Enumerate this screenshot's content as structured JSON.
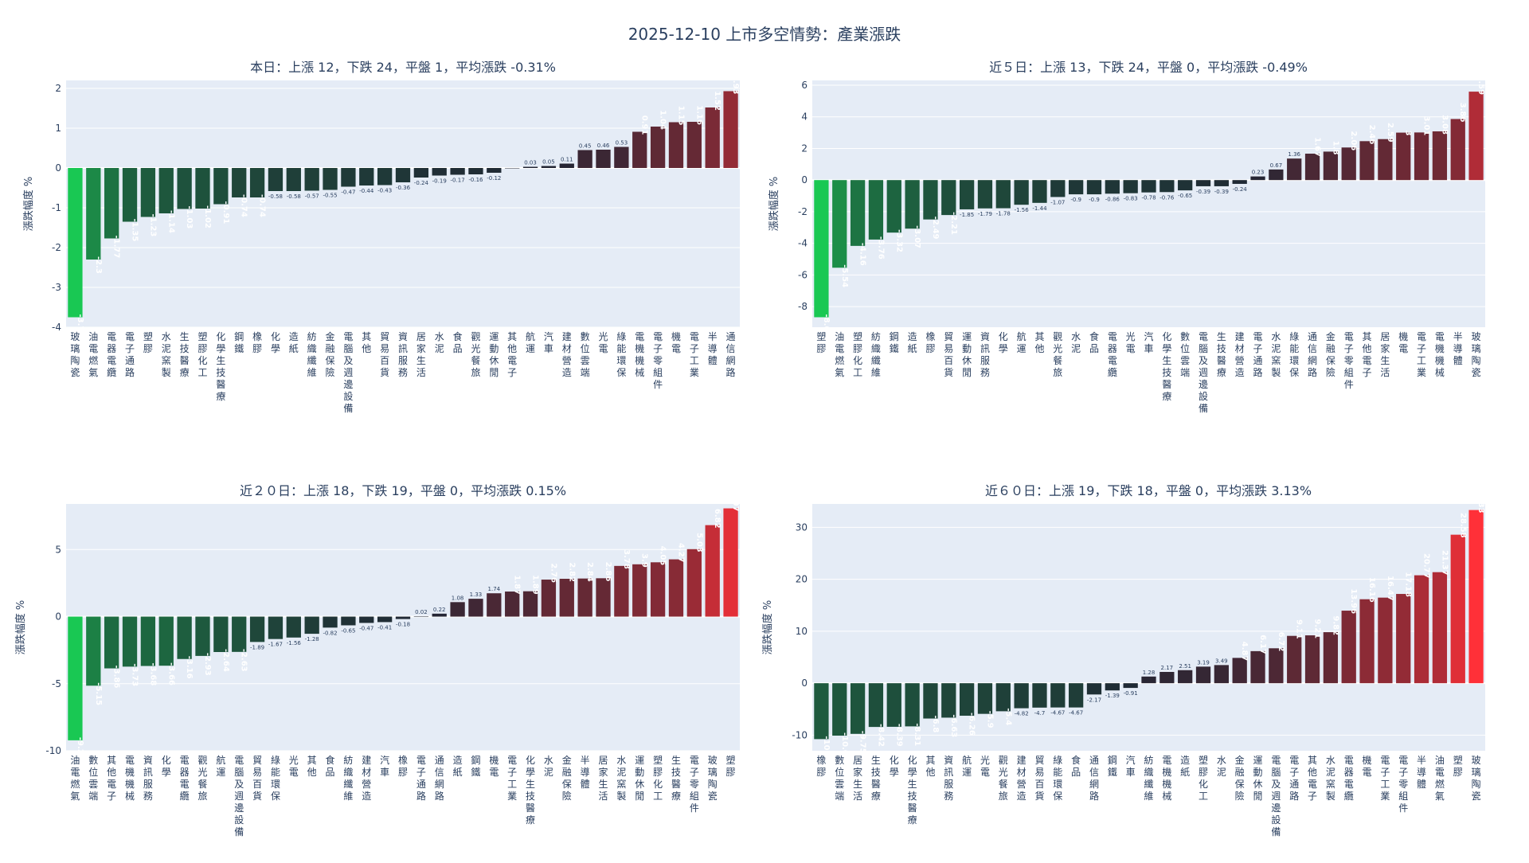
{
  "chart_data": {
    "title": "2025-12-10 上市多空情勢：產業漲跌",
    "type": "bar",
    "panels": [
      {
        "title": "本日：上漲 12，下跌 24，平盤 1，平均漲跌 -0.31%",
        "ylabel": "漲跌幅度 %",
        "ylim": [
          -4,
          2.2
        ],
        "yticks": [
          -4,
          -3,
          -2,
          -1,
          0,
          1,
          2
        ],
        "categories": [
          "玻璃陶瓷",
          "油電燃氣",
          "電器電纜",
          "電子通路",
          "塑膠",
          "水泥窯製",
          "生技醫療",
          "塑膠化工",
          "化學生技醫療",
          "鋼鐵",
          "橡膠",
          "化學",
          "造紙",
          "紡織纖維",
          "金融保險",
          "電腦及週邊設備",
          "其他",
          "貿易百貨",
          "資訊服務",
          "居家生活",
          "水泥",
          "食品",
          "觀光餐旅",
          "運動休閒",
          "其他電子",
          "航運",
          "汽車",
          "建材營造",
          "數位雲端",
          "光電",
          "綠能環保",
          "電機機械",
          "電子零組件",
          "機電",
          "電子工業",
          "半導體",
          "通信網路"
        ],
        "values": [
          -3.75,
          -2.3,
          -1.77,
          -1.35,
          -1.23,
          -1.14,
          -1.03,
          -1.02,
          -0.91,
          -0.74,
          -0.74,
          -0.58,
          -0.58,
          -0.57,
          -0.55,
          -0.47,
          -0.44,
          -0.43,
          -0.36,
          -0.24,
          -0.19,
          -0.17,
          -0.16,
          -0.12,
          0,
          0.03,
          0.05,
          0.11,
          0.45,
          0.46,
          0.53,
          0.91,
          1.04,
          1.15,
          1.16,
          1.52,
          1.93
        ],
        "labels": [
          "-3.75",
          "-2.3",
          "-1.77",
          "-1.35",
          "-1.23",
          "-1.14",
          "-1.03",
          "-1.02",
          "-0.91",
          "-0.74",
          "-0.74",
          "-0.58",
          "-0.58",
          "-0.57",
          "-0.55",
          "-0.47",
          "-0.44",
          "-0.43",
          "-0.36",
          "-0.24",
          "-0.19",
          "-0.17",
          "-0.16",
          "-0.12",
          "",
          "0.03",
          "0.05",
          "0.11",
          "0.45",
          "0.46",
          "0.53",
          "0.91",
          "1.04",
          "1.15",
          "1.16",
          "1.52",
          "1.93"
        ]
      },
      {
        "title": "近５日：上漲 13，下跌 24，平盤 0，平均漲跌 -0.49%",
        "ylabel": "漲跌幅度 %",
        "ylim": [
          -9.3,
          6.3
        ],
        "yticks": [
          -8,
          -6,
          -4,
          -2,
          0,
          2,
          4,
          6
        ],
        "categories": [
          "塑膠",
          "油電燃氣",
          "塑膠化工",
          "紡織纖維",
          "鋼鐵",
          "造紙",
          "橡膠",
          "貿易百貨",
          "運動休閒",
          "資訊服務",
          "化學",
          "航運",
          "其他",
          "觀光餐旅",
          "水泥",
          "食品",
          "電器電纜",
          "光電",
          "汽車",
          "化學生技醫療",
          "數位雲端",
          "電腦及週邊設備",
          "生技醫療",
          "建材營造",
          "電子通路",
          "水泥窯製",
          "綠能環保",
          "通信網路",
          "金融保險",
          "電子零組件",
          "其他電子",
          "居家生活",
          "機電",
          "電子工業",
          "電機機械",
          "半導體",
          "玻璃陶瓷"
        ],
        "values": [
          -8.67,
          -5.54,
          -4.16,
          -3.76,
          -3.32,
          -3.07,
          -2.49,
          -2.21,
          -1.85,
          -1.79,
          -1.78,
          -1.56,
          -1.44,
          -1.07,
          -0.9,
          -0.9,
          -0.86,
          -0.83,
          -0.78,
          -0.76,
          -0.65,
          -0.39,
          -0.39,
          -0.24,
          0.23,
          0.67,
          1.36,
          1.67,
          1.8,
          2.06,
          2.46,
          2.59,
          3,
          3.01,
          3.08,
          3.86,
          5.59
        ],
        "labels": [
          "-8.67",
          "-5.54",
          "-4.16",
          "-3.76",
          "-3.32",
          "-3.07",
          "-2.49",
          "-2.21",
          "-1.85",
          "-1.79",
          "-1.78",
          "-1.56",
          "-1.44",
          "-1.07",
          "-0.9",
          "-0.9",
          "-0.86",
          "-0.83",
          "-0.78",
          "-0.76",
          "-0.65",
          "-0.39",
          "-0.39",
          "-0.24",
          "0.23",
          "0.67",
          "1.36",
          "1.67",
          "1.8",
          "2.06",
          "2.46",
          "2.59",
          "3",
          "3.01",
          "3.08",
          "3.86",
          "5.59"
        ]
      },
      {
        "title": "近２０日：上漲 18，下跌 19，平盤 0，平均漲跌 0.15%",
        "ylabel": "漲跌幅度 %",
        "ylim": [
          -10,
          8.4
        ],
        "yticks": [
          -10,
          -5,
          0,
          5
        ],
        "categories": [
          "油電燃氣",
          "數位雲端",
          "其他電子",
          "電機機械",
          "資訊服務",
          "化學",
          "電器電纜",
          "觀光餐旅",
          "航運",
          "電腦及週邊設備",
          "貿易百貨",
          "綠能環保",
          "光電",
          "其他",
          "食品",
          "紡織纖維",
          "建材營造",
          "汽車",
          "橡膠",
          "電子通路",
          "通信網路",
          "造紙",
          "鋼鐵",
          "機電",
          "電子工業",
          "化學生技醫療",
          "水泥",
          "金融保險",
          "半導體",
          "居家生活",
          "水泥窯製",
          "運動休閒",
          "塑膠化工",
          "生技醫療",
          "電子零組件",
          "玻璃陶瓷",
          "塑膠"
        ],
        "values": [
          -9.22,
          -5.15,
          -3.86,
          -3.73,
          -3.68,
          -3.66,
          -3.16,
          -2.93,
          -2.64,
          -2.63,
          -1.89,
          -1.67,
          -1.56,
          -1.28,
          -0.82,
          -0.65,
          -0.47,
          -0.41,
          -0.18,
          0.02,
          0.22,
          1.08,
          1.33,
          1.74,
          1.87,
          1.89,
          2.76,
          2.82,
          2.84,
          2.86,
          3.78,
          3.9,
          4.05,
          4.27,
          5.03,
          6.82,
          8.07
        ],
        "labels": [
          "-9.22",
          "-5.15",
          "-3.86",
          "-3.73",
          "-3.68",
          "-3.66",
          "-3.16",
          "-2.93",
          "-2.64",
          "-2.63",
          "-1.89",
          "-1.67",
          "-1.56",
          "-1.28",
          "-0.82",
          "-0.65",
          "-0.47",
          "-0.41",
          "-0.18",
          "0.02",
          "0.22",
          "1.08",
          "1.33",
          "1.74",
          "1.87",
          "1.89",
          "2.76",
          "2.82",
          "2.84",
          "2.86",
          "3.78",
          "3.9",
          "4.05",
          "4.27",
          "5.03",
          "6.82",
          "8.07"
        ]
      },
      {
        "title": "近６０日：上漲 19，下跌 18，平盤 0，平均漲跌 3.13%",
        "ylabel": "漲跌幅度 %",
        "ylim": [
          -13,
          34.5
        ],
        "yticks": [
          -10,
          0,
          10,
          20,
          30
        ],
        "categories": [
          "橡膠",
          "數位雲端",
          "居家生活",
          "生技醫療",
          "化學",
          "化學生技醫療",
          "其他",
          "資訊服務",
          "航運",
          "光電",
          "觀光餐旅",
          "建材營造",
          "貿易百貨",
          "綠能環保",
          "食品",
          "通信網路",
          "鋼鐵",
          "汽車",
          "紡織纖維",
          "電機機械",
          "造紙",
          "塑膠化工",
          "水泥",
          "金融保險",
          "運動休閒",
          "電腦及週邊設備",
          "電子通路",
          "其他電子",
          "水泥窯製",
          "電器電纜",
          "機電",
          "電子工業",
          "電子零組件",
          "半導體",
          "油電燃氣",
          "塑膠",
          "玻璃陶瓷"
        ],
        "values": [
          -10.76,
          -10.09,
          -9.75,
          -8.42,
          -8.39,
          -8.31,
          -6.8,
          -6.63,
          -6.26,
          -5.9,
          -5.4,
          -4.82,
          -4.7,
          -4.67,
          -4.67,
          -2.17,
          -1.39,
          -0.91,
          1.28,
          2.17,
          2.51,
          3.19,
          3.49,
          4.87,
          6.17,
          6.72,
          9.11,
          9.21,
          9.82,
          13.96,
          16.16,
          16.47,
          17.18,
          20.77,
          21.37,
          28.58,
          33.33
        ],
        "labels": [
          "-10.76",
          "-10.09",
          "-9.75",
          "-8.42",
          "-8.39",
          "-8.31",
          "-6.8",
          "-6.63",
          "-6.26",
          "-5.9",
          "-5.4",
          "-4.82",
          "-4.7",
          "-4.67",
          "-4.67",
          "-2.17",
          "-1.39",
          "-0.91",
          "1.28",
          "2.17",
          "2.51",
          "3.19",
          "3.49",
          "4.87",
          "6.17",
          "6.72",
          "9.11",
          "9.21",
          "9.82",
          "13.96",
          "16.16",
          "16.47",
          "17.18",
          "20.77",
          "21.37",
          "28.58",
          "33.33"
        ]
      }
    ]
  }
}
